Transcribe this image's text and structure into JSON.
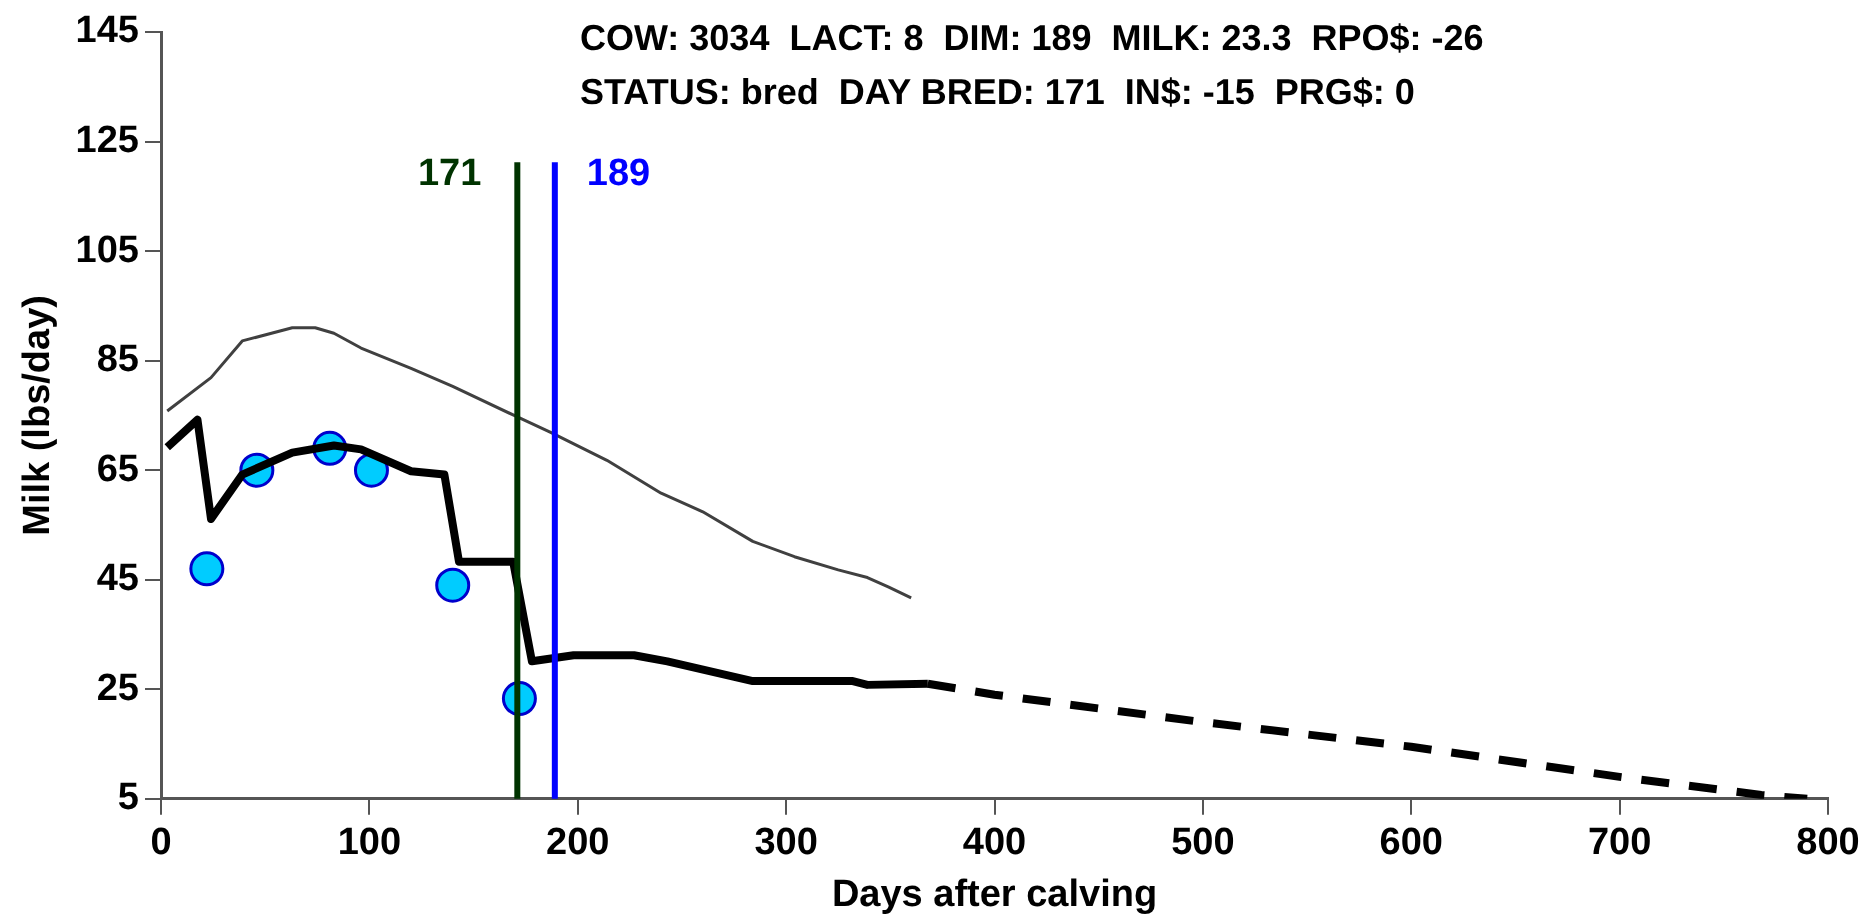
{
  "chart_data": {
    "type": "line",
    "xlabel": "Days after calving",
    "ylabel": "Milk (lbs/day)",
    "annotations": [
      "COW: 3034  LACT: 8  DIM: 189  MILK: 23.3  RPO$: -26",
      "STATUS: bred  DAY BRED: 171  IN$: -15  PRG$: 0"
    ],
    "xlim": [
      0,
      800
    ],
    "xticks": [
      0,
      100,
      200,
      300,
      400,
      500,
      600,
      700,
      800
    ],
    "ylim": [
      5,
      145
    ],
    "yticks": [
      5,
      25,
      45,
      65,
      85,
      105,
      125,
      145
    ],
    "grid": false,
    "legend": false,
    "series": [
      {
        "color": "#404040",
        "marker": "none",
        "line_style": "solid",
        "x": [
          3,
          24,
          39,
          63,
          74,
          83,
          96,
          120,
          140,
          170,
          187,
          214,
          240,
          260,
          284,
          304,
          325,
          339,
          349,
          360
        ],
        "values": [
          75.8,
          81.9,
          88.6,
          91,
          91,
          90,
          87.3,
          83.6,
          80.3,
          74.9,
          71.9,
          66.8,
          60.8,
          57.4,
          52,
          49.2,
          46.8,
          45.4,
          43.7,
          41.7
        ]
      },
      {
        "color": "#000000",
        "marker": "none",
        "line_style": "solid",
        "x": [
          3,
          17.5,
          24,
          39,
          63,
          83,
          96,
          120,
          136,
          143,
          169,
          178,
          198,
          227,
          243,
          284,
          332,
          339,
          368
        ],
        "values": [
          69.2,
          74.2,
          56.1,
          64.2,
          68.2,
          69.5,
          68.8,
          64.8,
          64.2,
          48.3,
          48.3,
          30.1,
          31.2,
          31.2,
          30.1,
          26.5,
          26.5,
          25.8,
          26
        ]
      },
      {
        "color": "#000000",
        "marker": "none",
        "line_style": "dashed",
        "x": [
          368,
          400,
          500,
          600,
          700,
          768,
          790
        ],
        "values": [
          26,
          24,
          19,
          14.5,
          9,
          5.7,
          5
        ]
      },
      {
        "type": "scatter",
        "color": "#00ccff",
        "marker": "circle",
        "x": [
          22,
          46,
          81,
          101,
          140,
          172
        ],
        "values": [
          47,
          65,
          69,
          65,
          44,
          23.3
        ]
      }
    ],
    "ref_lines": [
      {
        "axis": "x",
        "value": 171,
        "label": "171",
        "color": "#003300"
      },
      {
        "axis": "x",
        "value": 189,
        "label": "189",
        "color": "#0000ff"
      }
    ]
  }
}
